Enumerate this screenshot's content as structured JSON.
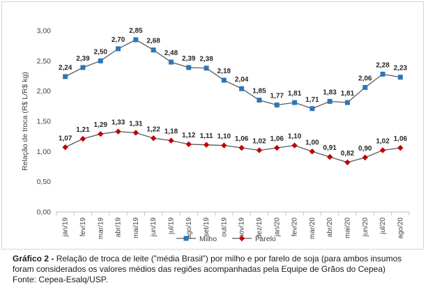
{
  "caption": {
    "label": "Gráfico 2 -",
    "text": " Relação de troca de leite (”média Brasil”) por milho e por farelo de soja (para ambos insumos foram considerados os valores médios das regiões acompanhadas pela Equipe de Grãos do Cepea)",
    "source": "Fonte: Cepea-Esalq/USP."
  },
  "chart_data": {
    "type": "line",
    "title": "",
    "xlabel": "",
    "ylabel": "Relação de troca (R$ L/R$ kg)",
    "ylim": [
      0,
      3
    ],
    "yticks": [
      "0,00",
      "0,50",
      "1,00",
      "1,50",
      "2,00",
      "2,50",
      "3,00"
    ],
    "grid": false,
    "legend_position": "bottom",
    "categories": [
      "jan/19",
      "fev/19",
      "mar/19",
      "abr/19",
      "mai/19",
      "jun/19",
      "jul/19",
      "ago/19",
      "set/19",
      "out/19",
      "nov/19",
      "dez/19",
      "jan/20",
      "fev/20",
      "mar/20",
      "abr/20",
      "mai/20",
      "jun/20",
      "jul/20",
      "ago/20"
    ],
    "series": [
      {
        "name": "Milho",
        "color": "#2e75b6",
        "line_color": "#595959",
        "marker": "square",
        "values": [
          2.24,
          2.39,
          2.5,
          2.7,
          2.85,
          2.68,
          2.48,
          2.39,
          2.38,
          2.18,
          2.04,
          1.85,
          1.77,
          1.81,
          1.71,
          1.83,
          1.81,
          2.06,
          2.28,
          2.23
        ],
        "labels": [
          "2,24",
          "2,39",
          "2,50",
          "2,70",
          "2,85",
          "2,68",
          "2,48",
          "2,39",
          "2,38",
          "2,18",
          "2,04",
          "1,85",
          "1,77",
          "1,81",
          "1,71",
          "1,83",
          "1,81",
          "2,06",
          "2,28",
          "2,23"
        ]
      },
      {
        "name": "Farelo",
        "color": "#c00000",
        "line_color": "#595959",
        "marker": "diamond",
        "values": [
          1.07,
          1.21,
          1.29,
          1.33,
          1.31,
          1.22,
          1.18,
          1.12,
          1.11,
          1.1,
          1.06,
          1.02,
          1.06,
          1.1,
          1.0,
          0.91,
          0.82,
          0.9,
          1.02,
          1.06
        ],
        "labels": [
          "1,07",
          "1,21",
          "1,29",
          "1,33",
          "1,31",
          "1,22",
          "1,18",
          "1,12",
          "1,11",
          "1,10",
          "1,06",
          "1,02",
          "1,06",
          "1,10",
          "1,00",
          "0,91",
          "0,82",
          "0,90",
          "1,02",
          "1,06"
        ]
      }
    ]
  }
}
